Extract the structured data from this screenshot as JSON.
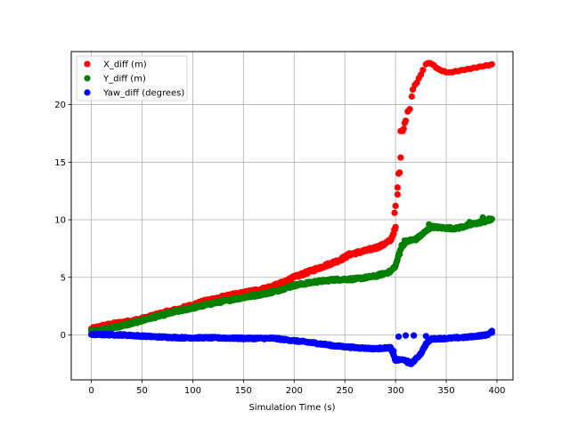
{
  "chart_data": {
    "type": "scatter",
    "title": "",
    "xlabel": "Simulation Time (s)",
    "ylabel": "",
    "xlim": [
      -19.8,
      415.8
    ],
    "ylim": [
      -3.9,
      24.6
    ],
    "xticks": [
      0,
      50,
      100,
      150,
      200,
      250,
      300,
      350,
      400
    ],
    "yticks": [
      0,
      5,
      10,
      15,
      20
    ],
    "grid": true,
    "legend_position": "upper-left",
    "series": [
      {
        "name": "X_diff (m)",
        "color": "#ff0000",
        "anchors": [
          [
            0,
            0.5
          ],
          [
            10,
            0.75
          ],
          [
            25,
            1.0
          ],
          [
            40,
            1.2
          ],
          [
            55,
            1.5
          ],
          [
            70,
            1.9
          ],
          [
            85,
            2.2
          ],
          [
            100,
            2.6
          ],
          [
            115,
            3.0
          ],
          [
            130,
            3.3
          ],
          [
            150,
            3.65
          ],
          [
            170,
            4.0
          ],
          [
            185,
            4.4
          ],
          [
            200,
            5.0
          ],
          [
            215,
            5.5
          ],
          [
            230,
            6.0
          ],
          [
            245,
            6.5
          ],
          [
            255,
            7.0
          ],
          [
            270,
            7.3
          ],
          [
            285,
            7.7
          ],
          [
            295,
            8.2
          ],
          [
            300,
            9.3
          ]
        ],
        "spread": 0.12,
        "extra_points": [
          [
            299,
            10.6
          ],
          [
            300,
            11.2
          ],
          [
            302,
            12.2
          ],
          [
            302,
            12.8
          ],
          [
            303,
            14.0
          ],
          [
            304,
            14.1
          ],
          [
            305,
            15.4
          ],
          [
            305,
            17.7
          ],
          [
            307,
            17.7
          ],
          [
            308,
            17.9
          ],
          [
            309,
            18.4
          ],
          [
            310,
            18.6
          ],
          [
            312,
            19.4
          ],
          [
            314,
            19.6
          ],
          [
            316,
            20.7
          ],
          [
            317,
            21.3
          ],
          [
            319,
            21.7
          ],
          [
            321,
            21.9
          ],
          [
            323,
            22.3
          ],
          [
            325,
            22.6
          ],
          [
            327,
            23.0
          ],
          [
            330,
            23.5
          ],
          [
            332,
            23.6
          ],
          [
            334,
            23.6
          ],
          [
            336,
            23.5
          ],
          [
            338,
            23.4
          ],
          [
            340,
            23.2
          ],
          [
            342,
            23.1
          ],
          [
            344,
            23.0
          ],
          [
            346,
            22.9
          ],
          [
            348,
            22.9
          ],
          [
            350,
            22.8
          ],
          [
            353,
            22.8
          ],
          [
            356,
            22.8
          ],
          [
            359,
            22.9
          ],
          [
            362,
            22.9
          ],
          [
            365,
            23.0
          ],
          [
            368,
            23.0
          ],
          [
            371,
            23.1
          ],
          [
            374,
            23.1
          ],
          [
            377,
            23.2
          ],
          [
            380,
            23.2
          ],
          [
            383,
            23.3
          ],
          [
            386,
            23.3
          ],
          [
            389,
            23.4
          ],
          [
            392,
            23.4
          ],
          [
            395,
            23.5
          ]
        ]
      },
      {
        "name": "Y_diff (m)",
        "color": "#008000",
        "anchors": [
          [
            0,
            0.3
          ],
          [
            20,
            0.6
          ],
          [
            40,
            1.0
          ],
          [
            60,
            1.5
          ],
          [
            80,
            1.95
          ],
          [
            100,
            2.35
          ],
          [
            120,
            2.75
          ],
          [
            140,
            3.1
          ],
          [
            160,
            3.4
          ],
          [
            180,
            3.75
          ],
          [
            200,
            4.3
          ],
          [
            220,
            4.6
          ],
          [
            240,
            4.8
          ],
          [
            260,
            4.85
          ],
          [
            280,
            5.1
          ],
          [
            295,
            5.5
          ],
          [
            300,
            6.0
          ],
          [
            305,
            7.5
          ],
          [
            310,
            8.1
          ],
          [
            320,
            8.3
          ],
          [
            330,
            9.0
          ],
          [
            335,
            9.4
          ],
          [
            345,
            9.3
          ],
          [
            360,
            9.25
          ],
          [
            380,
            9.7
          ],
          [
            395,
            10.0
          ]
        ],
        "spread": 0.1,
        "extra_points": [
          [
            304,
            7.0
          ],
          [
            306,
            7.8
          ],
          [
            309,
            8.2
          ],
          [
            315,
            8.3
          ],
          [
            325,
            8.6
          ],
          [
            333,
            9.6
          ],
          [
            373,
            9.8
          ],
          [
            386,
            10.2
          ],
          [
            392,
            10.1
          ]
        ]
      },
      {
        "name": "Yaw_diff (degrees)",
        "color": "#0000ff",
        "anchors": [
          [
            0,
            0.05
          ],
          [
            30,
            0.0
          ],
          [
            60,
            -0.15
          ],
          [
            90,
            -0.25
          ],
          [
            120,
            -0.25
          ],
          [
            150,
            -0.3
          ],
          [
            180,
            -0.3
          ],
          [
            200,
            -0.5
          ],
          [
            220,
            -0.7
          ],
          [
            240,
            -0.95
          ],
          [
            260,
            -1.1
          ],
          [
            280,
            -1.2
          ],
          [
            295,
            -1.1
          ],
          [
            300,
            -2.2
          ],
          [
            305,
            -2.15
          ],
          [
            310,
            -2.2
          ],
          [
            315,
            -2.5
          ],
          [
            320,
            -2.1
          ],
          [
            325,
            -1.6
          ],
          [
            330,
            -0.8
          ],
          [
            335,
            -0.35
          ],
          [
            350,
            -0.3
          ],
          [
            370,
            -0.2
          ],
          [
            390,
            0.0
          ],
          [
            395,
            0.25
          ]
        ],
        "spread": 0.07,
        "extra_points": [
          [
            298,
            -1.4
          ],
          [
            303,
            -0.15
          ],
          [
            310,
            -0.05
          ],
          [
            318,
            -0.05
          ],
          [
            330,
            -0.1
          ],
          [
            395,
            0.35
          ],
          [
            312,
            -2.45
          ],
          [
            318,
            -2.3
          ]
        ]
      }
    ]
  }
}
